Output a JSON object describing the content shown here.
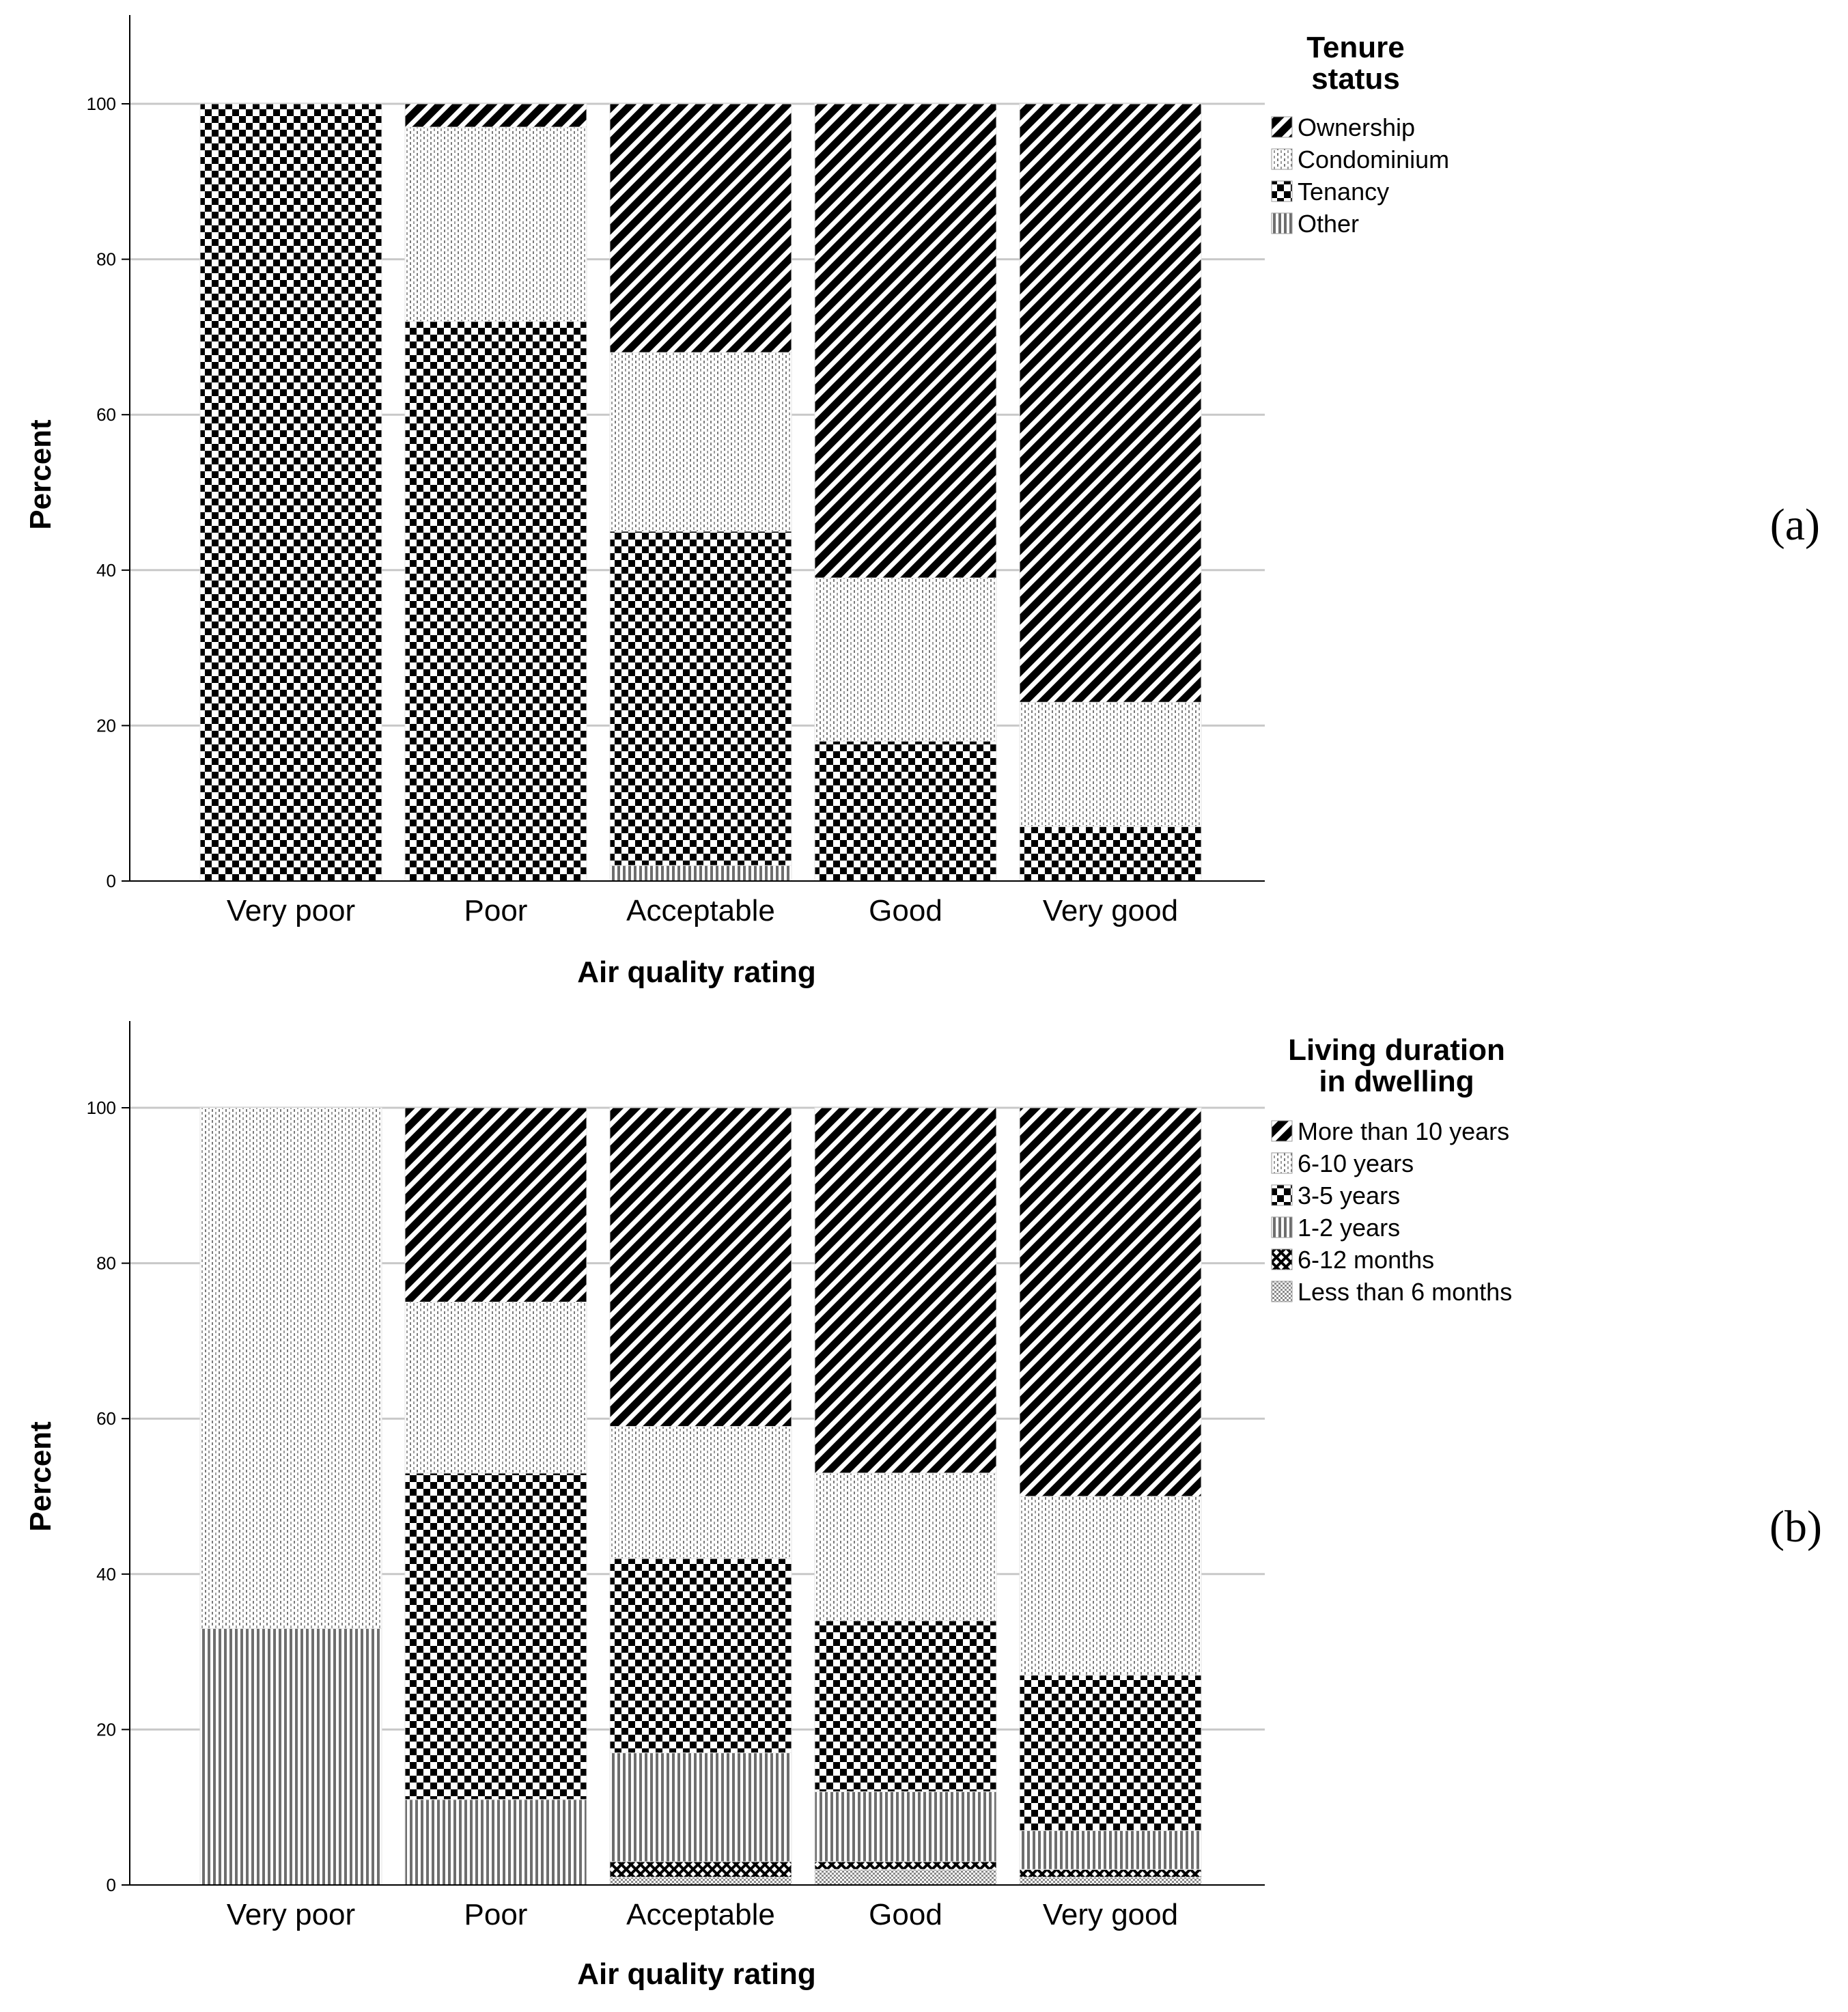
{
  "chart_data": [
    {
      "type": "bar",
      "stacked": true,
      "panel_label": "(a)",
      "xlabel": "Air quality rating",
      "ylabel": "Percent",
      "ylim": [
        0,
        110
      ],
      "yticks": [
        "0",
        "20",
        "40",
        "60",
        "80",
        "100"
      ],
      "grid": true,
      "legend_title": [
        "Tenure",
        "status"
      ],
      "categories": [
        "Very poor",
        "Poor",
        "Acceptable",
        "Good",
        "Very good"
      ],
      "series": [
        {
          "name": "Other",
          "pattern": "vlines",
          "values": [
            0,
            0,
            2,
            0,
            0
          ]
        },
        {
          "name": "Tenancy",
          "pattern": "checker",
          "values": [
            100,
            72,
            43,
            18,
            7
          ]
        },
        {
          "name": "Condominium",
          "pattern": "dotted",
          "values": [
            0,
            25,
            23,
            21,
            16
          ]
        },
        {
          "name": "Ownership",
          "pattern": "diagonal",
          "values": [
            0,
            3,
            32,
            61,
            77
          ]
        }
      ],
      "legend_order": [
        "Ownership",
        "Condominium",
        "Tenancy",
        "Other"
      ]
    },
    {
      "type": "bar",
      "stacked": true,
      "panel_label": "(b)",
      "xlabel": "Air quality rating",
      "ylabel": "Percent",
      "ylim": [
        0,
        110
      ],
      "yticks": [
        "0",
        "20",
        "40",
        "60",
        "80",
        "100"
      ],
      "grid": true,
      "legend_title": [
        "Living duration",
        "in dwelling"
      ],
      "categories": [
        "Very poor",
        "Poor",
        "Acceptable",
        "Good",
        "Very good"
      ],
      "series": [
        {
          "name": "Less than 6 months",
          "pattern": "dense",
          "values": [
            0,
            0,
            1,
            2,
            1
          ]
        },
        {
          "name": "6-12 months",
          "pattern": "crosshatch",
          "values": [
            0,
            0,
            2,
            1,
            1
          ]
        },
        {
          "name": "1-2 years",
          "pattern": "vlines",
          "values": [
            33,
            11,
            14,
            9,
            5
          ]
        },
        {
          "name": "3-5 years",
          "pattern": "checker",
          "values": [
            0,
            42,
            25,
            22,
            20
          ]
        },
        {
          "name": "6-10 years",
          "pattern": "dotted",
          "values": [
            67,
            22,
            17,
            19,
            23
          ]
        },
        {
          "name": "More than 10 years",
          "pattern": "diagonal",
          "values": [
            0,
            25,
            41,
            47,
            50
          ]
        }
      ],
      "legend_order": [
        "More than 10 years",
        "6-10 years",
        "3-5 years",
        "1-2 years",
        "6-12 months",
        "Less than 6 months"
      ]
    }
  ]
}
